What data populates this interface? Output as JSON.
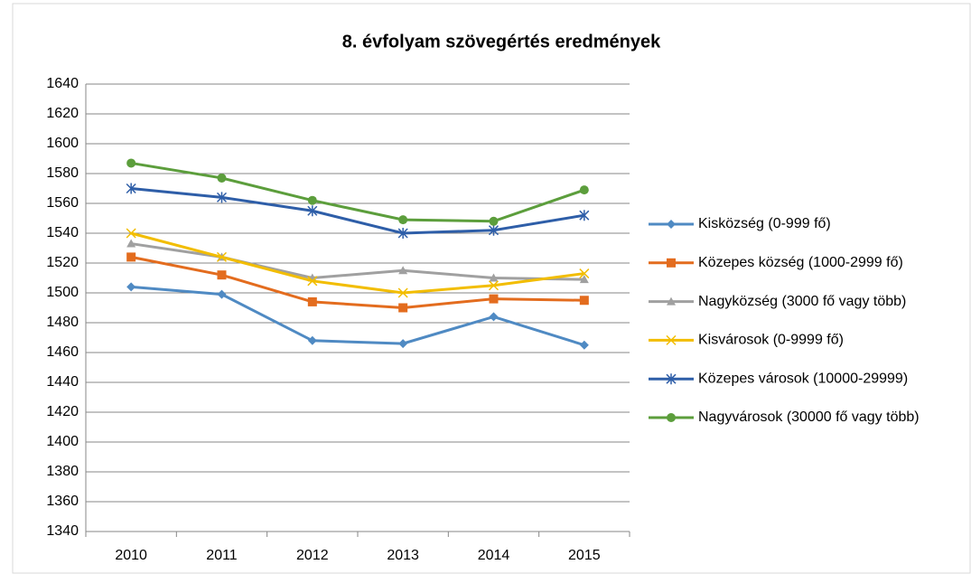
{
  "chart_data": {
    "type": "line",
    "title": "8. évfolyam szövegértés eredmények",
    "categories": [
      "2010",
      "2011",
      "2012",
      "2013",
      "2014",
      "2015"
    ],
    "series": [
      {
        "name": "Kisközség (0-999 fő)",
        "color": "#4f8ac3",
        "marker": "diamond",
        "values": [
          1504,
          1499,
          1468,
          1466,
          1484,
          1465
        ]
      },
      {
        "name": "Közepes község (1000-2999 fő)",
        "color": "#e36c1e",
        "marker": "square",
        "values": [
          1524,
          1512,
          1494,
          1490,
          1496,
          1495
        ]
      },
      {
        "name": "Nagyközség (3000 fő vagy több)",
        "color": "#a0a0a0",
        "marker": "triangle",
        "values": [
          1533,
          1524,
          1510,
          1515,
          1510,
          1509
        ]
      },
      {
        "name": "Kisvárosok (0-9999 fő)",
        "color": "#f2bd00",
        "marker": "x",
        "values": [
          1540,
          1524,
          1508,
          1500,
          1505,
          1513
        ]
      },
      {
        "name": "Közepes  városok (10000-29999)",
        "color": "#2e5ea8",
        "marker": "star",
        "values": [
          1570,
          1564,
          1555,
          1540,
          1542,
          1552
        ]
      },
      {
        "name": "Nagyvárosok (30000 fő vagy több)",
        "color": "#5c9e3c",
        "marker": "circle",
        "values": [
          1587,
          1577,
          1562,
          1549,
          1548,
          1569
        ]
      }
    ],
    "ylim": [
      1340,
      1640
    ],
    "yticks": [
      1340,
      1360,
      1380,
      1400,
      1420,
      1440,
      1460,
      1480,
      1500,
      1520,
      1540,
      1560,
      1580,
      1600,
      1620,
      1640
    ],
    "grid": true,
    "legend": "right"
  }
}
